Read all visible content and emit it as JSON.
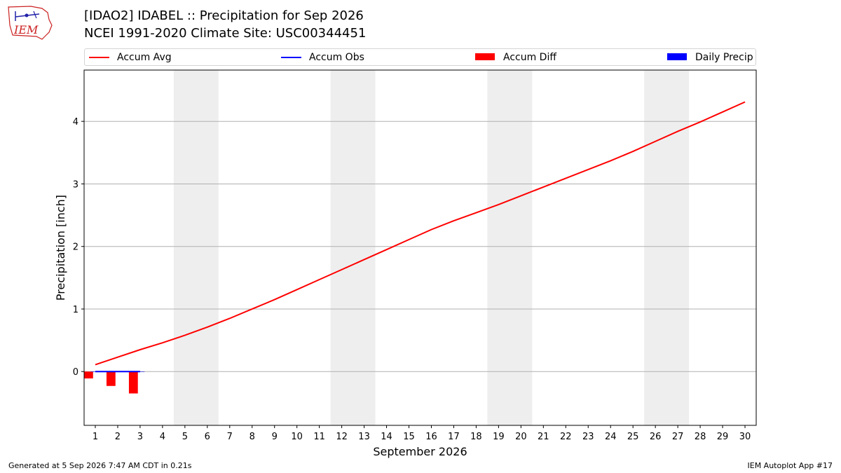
{
  "header": {
    "logo_text": "IEM",
    "title_line1": "[IDAO2] IDABEL :: Precipitation for Sep 2026",
    "title_line2": "NCEI 1991-2020 Climate Site: USC00344451"
  },
  "legend": {
    "placement": "top, above plot",
    "items": [
      {
        "label": "Accum Avg",
        "type": "line",
        "color": "#ff0000"
      },
      {
        "label": "Accum Obs",
        "type": "line",
        "color": "#0000ff"
      },
      {
        "label": "Accum Diff",
        "type": "bar",
        "color": "#ff0000"
      },
      {
        "label": "Daily Precip",
        "type": "bar",
        "color": "#0000ff"
      }
    ]
  },
  "footer": {
    "left": "Generated at 5 Sep 2026 7:47 AM CDT in 0.21s",
    "right": "IEM Autoplot App #17"
  },
  "chart_data": {
    "type": "line",
    "xlabel": "September 2026",
    "ylabel": "Precipitation [inch]",
    "xlim": [
      0.5,
      30.5
    ],
    "ylim": [
      -0.86,
      4.82
    ],
    "x_ticks": [
      1,
      2,
      3,
      4,
      5,
      6,
      7,
      8,
      9,
      10,
      11,
      12,
      13,
      14,
      15,
      16,
      17,
      18,
      19,
      20,
      21,
      22,
      23,
      24,
      25,
      26,
      27,
      28,
      29,
      30
    ],
    "y_ticks": [
      0,
      1,
      2,
      3,
      4
    ],
    "grid": "horizontal",
    "weekend_shading": [
      [
        4.5,
        6.5
      ],
      [
        11.5,
        13.5
      ],
      [
        18.5,
        20.5
      ],
      [
        25.5,
        27.5
      ]
    ],
    "colors": {
      "avg": "#ff0000",
      "obs": "#0000ff",
      "diff": "#ff0000",
      "daily": "#0000ff",
      "weekend": "#eeeeee",
      "grid": "#b0b0b0"
    },
    "series": [
      {
        "name": "Accum Avg",
        "kind": "line",
        "x": [
          1,
          2,
          3,
          4,
          5,
          6,
          7,
          8,
          9,
          10,
          11,
          12,
          13,
          14,
          15,
          16,
          17,
          18,
          19,
          20,
          21,
          22,
          23,
          24,
          25,
          26,
          27,
          28,
          29,
          30
        ],
        "values": [
          0.11,
          0.23,
          0.35,
          0.46,
          0.58,
          0.71,
          0.85,
          1.0,
          1.15,
          1.31,
          1.47,
          1.63,
          1.79,
          1.95,
          2.11,
          2.27,
          2.41,
          2.54,
          2.67,
          2.81,
          2.95,
          3.09,
          3.23,
          3.37,
          3.52,
          3.68,
          3.84,
          3.99,
          4.15,
          4.31
        ]
      },
      {
        "name": "Accum Obs",
        "kind": "line",
        "x": [
          1,
          2,
          3
        ],
        "values": [
          0.0,
          0.0,
          0.0
        ]
      },
      {
        "name": "Accum Diff",
        "kind": "bar",
        "x": [
          1,
          2,
          3
        ],
        "values": [
          -0.11,
          -0.23,
          -0.35
        ]
      },
      {
        "name": "Daily Precip",
        "kind": "bar",
        "x": [
          1,
          2,
          3
        ],
        "values": [
          0.0,
          0.0,
          0.0
        ]
      }
    ]
  }
}
